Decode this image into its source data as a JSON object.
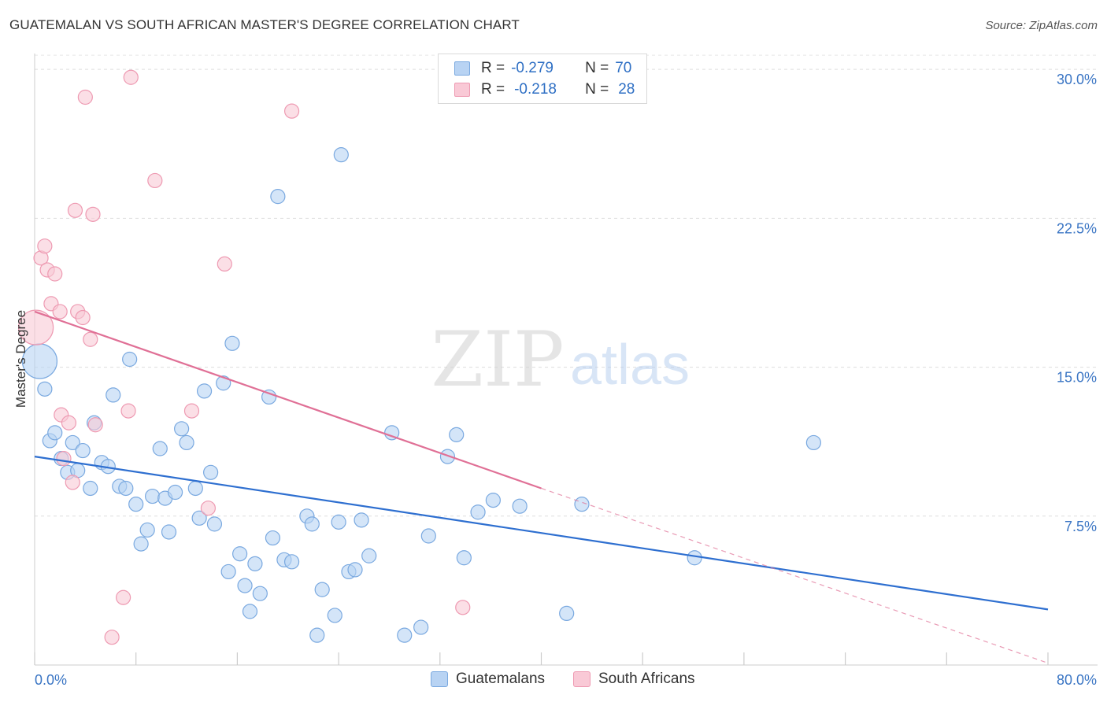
{
  "title": "GUATEMALAN VS SOUTH AFRICAN MASTER'S DEGREE CORRELATION CHART",
  "source": "Source: ZipAtlas.com",
  "watermark": {
    "zip": "ZIP",
    "atlas": "atlas"
  },
  "colors": {
    "guatemalan_fill": "#b8d3f3",
    "guatemalan_stroke": "#7aa9e0",
    "guatemalan_line": "#2e6fd0",
    "south_african_fill": "#f9c9d6",
    "south_african_stroke": "#ee9ab2",
    "south_african_line": "#e07096",
    "grid": "#dddddd",
    "tick_label": "#3a75c4"
  },
  "legend_top": [
    {
      "r_label": "R =",
      "r_value": "-0.279",
      "n_label": "N =",
      "n_value": "70"
    },
    {
      "r_label": "R =",
      "r_value": "-0.218",
      "n_label": "N =",
      "n_value": "28"
    }
  ],
  "legend_bottom": [
    "Guatemalans",
    "South Africans"
  ],
  "chart_data": {
    "type": "scatter",
    "title": "GUATEMALAN VS SOUTH AFRICAN MASTER'S DEGREE CORRELATION CHART",
    "xlabel": "",
    "ylabel": "Master's Degree",
    "xlim": [
      0,
      80
    ],
    "ylim": [
      0,
      30.8
    ],
    "x_tick_labels": [
      "0.0%",
      "80.0%"
    ],
    "y_tick_values": [
      7.5,
      15.0,
      22.5,
      30.0
    ],
    "y_tick_labels": [
      "7.5%",
      "15.0%",
      "22.5%",
      "30.0%"
    ],
    "grid": "horizontal dashed",
    "legend_position": "top-center and bottom",
    "series": [
      {
        "name": "Guatemalans",
        "trend": {
          "x": [
            0,
            80
          ],
          "y": [
            10.5,
            2.8
          ]
        },
        "points": [
          {
            "x": 0.4,
            "y": 15.3,
            "big": true
          },
          {
            "x": 0.8,
            "y": 13.9
          },
          {
            "x": 1.2,
            "y": 11.3
          },
          {
            "x": 1.6,
            "y": 11.7
          },
          {
            "x": 2.1,
            "y": 10.4
          },
          {
            "x": 2.6,
            "y": 9.7
          },
          {
            "x": 3.0,
            "y": 11.2
          },
          {
            "x": 3.4,
            "y": 9.8
          },
          {
            "x": 3.8,
            "y": 10.8
          },
          {
            "x": 4.4,
            "y": 8.9
          },
          {
            "x": 4.7,
            "y": 12.2
          },
          {
            "x": 5.3,
            "y": 10.2
          },
          {
            "x": 5.8,
            "y": 10.0
          },
          {
            "x": 6.2,
            "y": 13.6
          },
          {
            "x": 6.7,
            "y": 9.0
          },
          {
            "x": 7.2,
            "y": 8.9
          },
          {
            "x": 7.5,
            "y": 15.4
          },
          {
            "x": 8.0,
            "y": 8.1
          },
          {
            "x": 8.4,
            "y": 6.1
          },
          {
            "x": 8.9,
            "y": 6.8
          },
          {
            "x": 9.3,
            "y": 8.5
          },
          {
            "x": 9.9,
            "y": 10.9
          },
          {
            "x": 10.3,
            "y": 8.4
          },
          {
            "x": 10.6,
            "y": 6.7
          },
          {
            "x": 11.1,
            "y": 8.7
          },
          {
            "x": 11.6,
            "y": 11.9
          },
          {
            "x": 12.0,
            "y": 11.2
          },
          {
            "x": 12.7,
            "y": 8.9
          },
          {
            "x": 13.0,
            "y": 7.4
          },
          {
            "x": 13.4,
            "y": 13.8
          },
          {
            "x": 13.9,
            "y": 9.7
          },
          {
            "x": 14.2,
            "y": 7.1
          },
          {
            "x": 14.9,
            "y": 14.2
          },
          {
            "x": 15.3,
            "y": 4.7
          },
          {
            "x": 15.6,
            "y": 16.2
          },
          {
            "x": 16.2,
            "y": 5.6
          },
          {
            "x": 16.6,
            "y": 4.0
          },
          {
            "x": 17.0,
            "y": 2.7
          },
          {
            "x": 17.4,
            "y": 5.1
          },
          {
            "x": 17.8,
            "y": 3.6
          },
          {
            "x": 18.5,
            "y": 13.5
          },
          {
            "x": 18.8,
            "y": 6.4
          },
          {
            "x": 19.2,
            "y": 23.6
          },
          {
            "x": 19.7,
            "y": 5.3
          },
          {
            "x": 20.3,
            "y": 5.2
          },
          {
            "x": 21.5,
            "y": 7.5
          },
          {
            "x": 21.9,
            "y": 7.1
          },
          {
            "x": 22.3,
            "y": 1.5
          },
          {
            "x": 22.7,
            "y": 3.8
          },
          {
            "x": 23.7,
            "y": 2.5
          },
          {
            "x": 24.0,
            "y": 7.2
          },
          {
            "x": 24.2,
            "y": 25.7
          },
          {
            "x": 24.8,
            "y": 4.7
          },
          {
            "x": 25.3,
            "y": 4.8
          },
          {
            "x": 25.8,
            "y": 7.3
          },
          {
            "x": 26.4,
            "y": 5.5
          },
          {
            "x": 28.2,
            "y": 11.7
          },
          {
            "x": 29.2,
            "y": 1.5
          },
          {
            "x": 30.5,
            "y": 1.9
          },
          {
            "x": 31.1,
            "y": 6.5
          },
          {
            "x": 32.6,
            "y": 10.5
          },
          {
            "x": 33.9,
            "y": 5.4
          },
          {
            "x": 33.3,
            "y": 11.6
          },
          {
            "x": 35.0,
            "y": 7.7
          },
          {
            "x": 36.2,
            "y": 8.3
          },
          {
            "x": 38.3,
            "y": 8.0
          },
          {
            "x": 42.0,
            "y": 2.6
          },
          {
            "x": 43.2,
            "y": 8.1
          },
          {
            "x": 52.1,
            "y": 5.4
          },
          {
            "x": 61.5,
            "y": 11.2
          }
        ]
      },
      {
        "name": "South Africans",
        "trend": {
          "x": [
            0,
            40
          ],
          "y": [
            17.8,
            8.9
          ]
        },
        "trend_dashed": {
          "x": [
            40,
            80
          ],
          "y": [
            8.9,
            0.1
          ]
        },
        "points": [
          {
            "x": 0.1,
            "y": 17.0,
            "big": true
          },
          {
            "x": 0.5,
            "y": 20.5
          },
          {
            "x": 0.8,
            "y": 21.1
          },
          {
            "x": 1.0,
            "y": 19.9
          },
          {
            "x": 1.3,
            "y": 18.2
          },
          {
            "x": 1.6,
            "y": 19.7
          },
          {
            "x": 2.0,
            "y": 17.8
          },
          {
            "x": 2.1,
            "y": 12.6
          },
          {
            "x": 2.3,
            "y": 10.4
          },
          {
            "x": 2.7,
            "y": 12.2
          },
          {
            "x": 3.0,
            "y": 9.2
          },
          {
            "x": 3.2,
            "y": 22.9
          },
          {
            "x": 3.4,
            "y": 17.8
          },
          {
            "x": 3.8,
            "y": 17.5
          },
          {
            "x": 4.0,
            "y": 28.6
          },
          {
            "x": 4.4,
            "y": 16.4
          },
          {
            "x": 4.6,
            "y": 22.7
          },
          {
            "x": 4.8,
            "y": 12.1
          },
          {
            "x": 6.1,
            "y": 1.4
          },
          {
            "x": 7.0,
            "y": 3.4
          },
          {
            "x": 7.4,
            "y": 12.8
          },
          {
            "x": 7.6,
            "y": 29.6
          },
          {
            "x": 9.5,
            "y": 24.4
          },
          {
            "x": 12.4,
            "y": 12.8
          },
          {
            "x": 13.7,
            "y": 7.9
          },
          {
            "x": 15.0,
            "y": 20.2
          },
          {
            "x": 20.3,
            "y": 27.9
          },
          {
            "x": 33.8,
            "y": 2.9
          }
        ]
      }
    ]
  }
}
